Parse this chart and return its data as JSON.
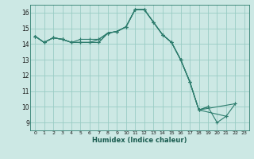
{
  "xlabel": "Humidex (Indice chaleur)",
  "ylabel": "",
  "bg_color": "#cce8e4",
  "grid_color": "#99ccc4",
  "line_color": "#2e7d6e",
  "xlim": [
    -0.5,
    23.5
  ],
  "ylim": [
    8.5,
    16.5
  ],
  "xticks": [
    0,
    1,
    2,
    3,
    4,
    5,
    6,
    7,
    8,
    9,
    10,
    11,
    12,
    13,
    14,
    15,
    16,
    17,
    18,
    19,
    20,
    21,
    22,
    23
  ],
  "yticks": [
    9,
    10,
    11,
    12,
    13,
    14,
    15,
    16
  ],
  "series": [
    {
      "x": [
        0,
        1,
        2,
        3,
        4,
        5,
        6,
        7,
        8,
        9,
        10,
        11,
        12,
        13,
        14,
        15,
        16,
        17,
        18,
        19,
        20,
        21,
        22
      ],
      "y": [
        14.5,
        14.1,
        14.4,
        14.3,
        14.1,
        14.1,
        14.1,
        14.1,
        14.7,
        14.8,
        15.1,
        16.2,
        16.2,
        15.4,
        14.6,
        14.1,
        13.0,
        11.6,
        9.8,
        10.0,
        9.0,
        9.4,
        10.2
      ]
    },
    {
      "x": [
        0,
        1,
        2,
        3,
        4,
        5,
        6,
        7,
        8,
        9,
        10,
        11,
        12,
        13,
        14,
        15,
        16,
        17,
        18,
        22
      ],
      "y": [
        14.5,
        14.1,
        14.4,
        14.3,
        14.1,
        14.1,
        14.1,
        14.3,
        14.7,
        14.8,
        15.1,
        16.2,
        16.2,
        15.4,
        14.6,
        14.1,
        13.0,
        11.6,
        9.8,
        10.2
      ]
    },
    {
      "x": [
        0,
        1,
        2,
        3,
        4,
        5,
        6,
        7,
        8,
        9,
        10,
        11,
        12,
        13,
        14,
        15,
        16,
        17,
        18,
        19
      ],
      "y": [
        14.5,
        14.1,
        14.4,
        14.3,
        14.1,
        14.1,
        14.1,
        14.1,
        14.7,
        14.8,
        15.1,
        16.2,
        16.2,
        15.4,
        14.6,
        14.1,
        13.0,
        11.6,
        9.8,
        10.0
      ]
    },
    {
      "x": [
        0,
        1,
        2,
        3,
        4,
        5,
        6,
        7,
        8,
        9,
        10,
        11,
        12,
        13,
        14,
        15,
        16,
        17,
        18,
        21
      ],
      "y": [
        14.5,
        14.1,
        14.4,
        14.3,
        14.1,
        14.3,
        14.3,
        14.3,
        14.7,
        14.8,
        15.1,
        16.2,
        16.2,
        15.4,
        14.6,
        14.1,
        13.0,
        11.6,
        9.8,
        9.4
      ]
    }
  ]
}
